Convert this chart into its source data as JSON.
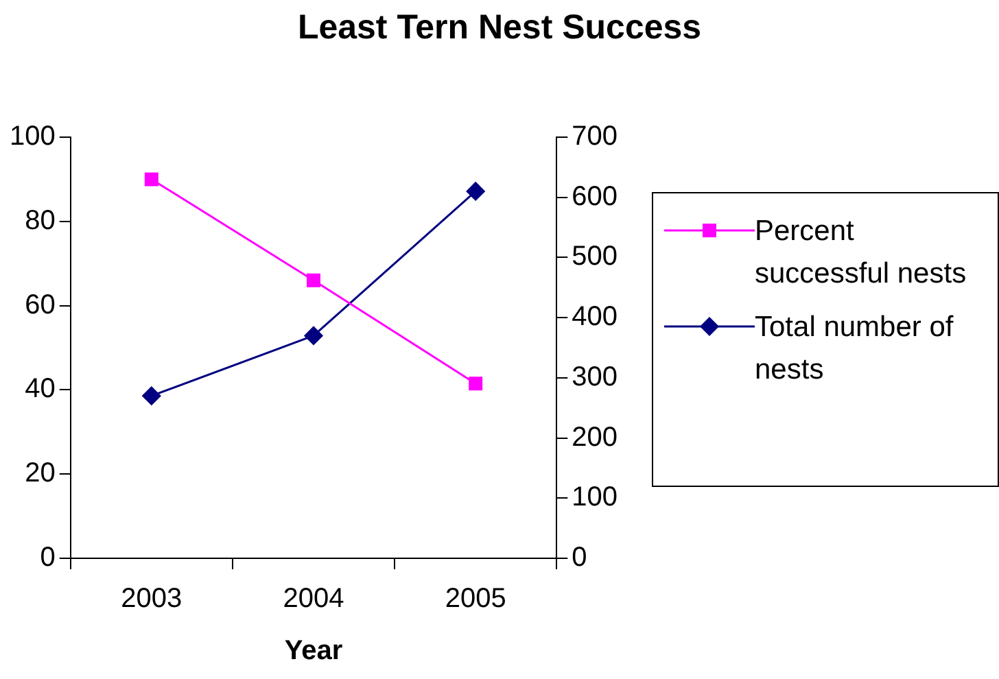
{
  "chart_data": {
    "type": "line",
    "title": "Least Tern Nest Success",
    "xlabel": "Year",
    "categories": [
      "2003",
      "2004",
      "2005"
    ],
    "series": [
      {
        "name": "Percent successful nests",
        "color": "#ff00ff",
        "values": [
          90,
          66,
          41.5
        ],
        "marker": "square"
      },
      {
        "name": "Total number of nests",
        "color": "#000080",
        "values": [
          270,
          370,
          610
        ],
        "marker": "diamond",
        "axis": "y2"
      }
    ],
    "ylim": [
      0,
      100
    ],
    "yticks": [
      0,
      20,
      40,
      60,
      80,
      100
    ],
    "y2lim": [
      0,
      700
    ],
    "y2ticks": [
      0,
      100,
      200,
      300,
      400,
      500,
      600,
      700
    ],
    "grid": false,
    "legend": "right",
    "line_style": "solid"
  }
}
